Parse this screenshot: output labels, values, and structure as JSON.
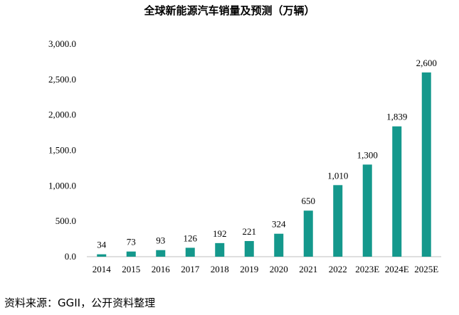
{
  "chart_data": {
    "type": "bar",
    "title": "全球新能源汽车销量及预测（万辆）",
    "categories": [
      "2014",
      "2015",
      "2016",
      "2017",
      "2018",
      "2019",
      "2020",
      "2021",
      "2022",
      "2023E",
      "2024E",
      "2025E"
    ],
    "values": [
      34,
      73,
      93,
      126,
      192,
      221,
      324,
      650,
      1010,
      1300,
      1839,
      2600
    ],
    "data_labels": [
      "34",
      "73",
      "93",
      "126",
      "192",
      "221",
      "324",
      "650",
      "1,010",
      "1,300",
      "1,839",
      "2,600"
    ],
    "ylim": [
      0,
      3000
    ],
    "yticks": [
      0,
      500,
      1000,
      1500,
      2000,
      2500,
      3000
    ],
    "ytick_labels": [
      "0.0",
      "500.0",
      "1,000.0",
      "1,500.0",
      "2,000.0",
      "2,500.0",
      "3,000.0"
    ],
    "xlabel": "",
    "ylabel": "",
    "grid": false,
    "bar_color": "#14988C"
  },
  "source": "资料来源：GGII，公开资料整理"
}
